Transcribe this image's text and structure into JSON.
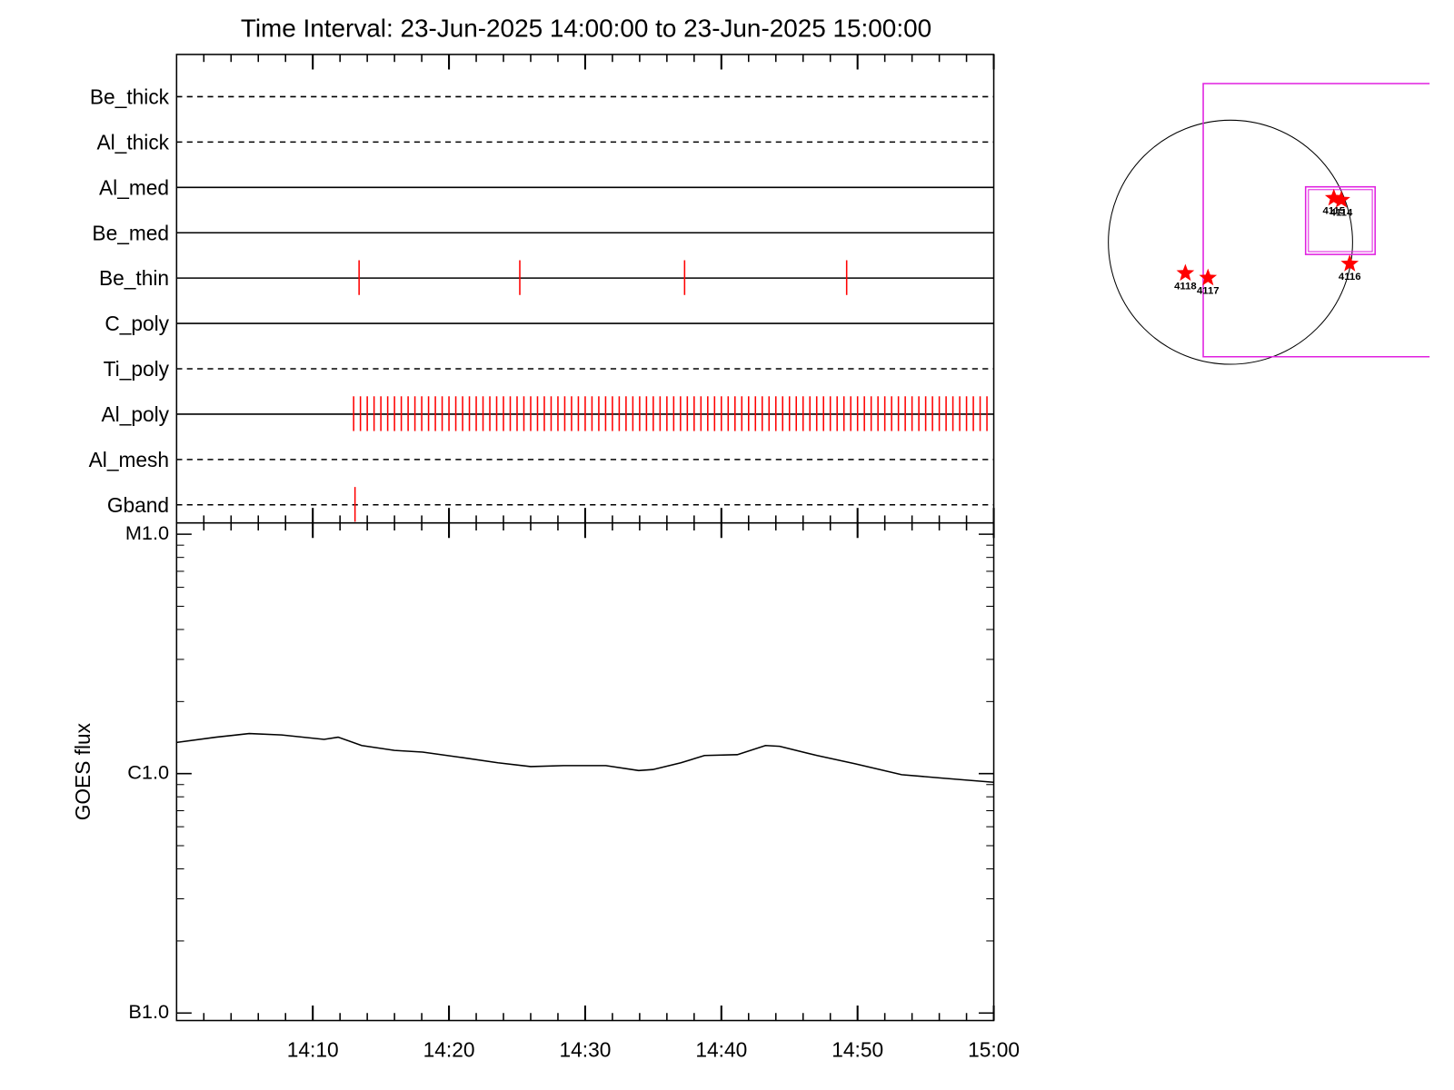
{
  "chart_data": {
    "type": "line",
    "title": "Time Interval: 23-Jun-2025 14:00:00 to 23-Jun-2025 15:00:00",
    "xlim": [
      0,
      60
    ],
    "xticks": [
      {
        "value": 10,
        "label": "14:10"
      },
      {
        "value": 20,
        "label": "14:20"
      },
      {
        "value": 30,
        "label": "14:30"
      },
      {
        "value": 40,
        "label": "14:40"
      },
      {
        "value": 50,
        "label": "14:50"
      },
      {
        "value": 60,
        "label": "15:00"
      }
    ],
    "xminorticks": [
      2,
      4,
      6,
      8,
      12,
      14,
      16,
      18,
      22,
      24,
      26,
      28,
      32,
      34,
      36,
      38,
      42,
      44,
      46,
      48,
      52,
      54,
      56,
      58
    ],
    "rows": [
      {
        "name": "Be_thick",
        "style": "dashed",
        "events": []
      },
      {
        "name": "Al_thick",
        "style": "dashed",
        "events": []
      },
      {
        "name": "Al_med",
        "style": "solid",
        "events": []
      },
      {
        "name": "Be_med",
        "style": "solid",
        "events": []
      },
      {
        "name": "Be_thin",
        "style": "solid",
        "events": [
          13.4,
          25.2,
          37.3,
          49.2
        ]
      },
      {
        "name": "C_poly",
        "style": "solid",
        "events": []
      },
      {
        "name": "Ti_poly",
        "style": "dashed",
        "events": []
      },
      {
        "name": "Al_poly",
        "style": "solid",
        "events": [
          13,
          13.5,
          14,
          14.5,
          15,
          15.5,
          16,
          16.5,
          17,
          17.5,
          18,
          18.5,
          19,
          19.5,
          20,
          20.5,
          21,
          21.5,
          22,
          22.5,
          23,
          23.5,
          24,
          24.5,
          25,
          25.5,
          26,
          26.5,
          27,
          27.5,
          28,
          28.5,
          29,
          29.5,
          30,
          30.5,
          31,
          31.5,
          32,
          32.5,
          33,
          33.5,
          34,
          34.5,
          35,
          35.5,
          36,
          36.5,
          37,
          37.5,
          38,
          38.5,
          39,
          39.5,
          40,
          40.5,
          41,
          41.5,
          42,
          42.5,
          43,
          43.5,
          44,
          44.5,
          45,
          45.5,
          46,
          46.5,
          47,
          47.5,
          48,
          48.5,
          49,
          49.5,
          50,
          50.5,
          51,
          51.5,
          52,
          52.5,
          53,
          53.5,
          54,
          54.5,
          55,
          55.5,
          56,
          56.5,
          57,
          57.5,
          58,
          58.5,
          59,
          59.5
        ]
      },
      {
        "name": "Al_mesh",
        "style": "dashed",
        "events": []
      },
      {
        "name": "Gband",
        "style": "dashed",
        "events": [
          13.1
        ]
      }
    ],
    "ylabel": "GOES flux",
    "log_y": true,
    "ylim": [
      1e-07,
      1e-05
    ],
    "yticks": [
      {
        "value": 1e-05,
        "label": "M1.0"
      },
      {
        "value": 1e-06,
        "label": "C1.0"
      },
      {
        "value": 1e-07,
        "label": "B1.0"
      }
    ],
    "yminorticks": [
      2e-07,
      3e-07,
      4e-07,
      5e-07,
      6e-07,
      7e-07,
      8e-07,
      9e-07,
      2e-06,
      3e-06,
      4e-06,
      5e-06,
      6e-06,
      7e-06,
      8e-06,
      9e-06
    ],
    "x": [
      0,
      2.9,
      5.33,
      7.72,
      10.83,
      11.86,
      13.59,
      16.0,
      18.07,
      20.83,
      23.59,
      26.0,
      28.41,
      31.52,
      33.93,
      34.97,
      37.03,
      38.76,
      41.17,
      43.24,
      44.28,
      47.03,
      49.79,
      53.24,
      56.0,
      60
    ],
    "series": [
      {
        "color": "#000000",
        "values": [
          1.35e-06,
          1.42e-06,
          1.47e-06,
          1.45e-06,
          1.39e-06,
          1.42e-06,
          1.31e-06,
          1.25e-06,
          1.23e-06,
          1.17e-06,
          1.11e-06,
          1.07e-06,
          1.08e-06,
          1.08e-06,
          1.03e-06,
          1.04e-06,
          1.11e-06,
          1.19e-06,
          1.2e-06,
          1.31e-06,
          1.3e-06,
          1.19e-06,
          1.1e-06,
          9.9e-07,
          9.6e-07,
          9.2e-07
        ]
      }
    ],
    "event_color": "#ff0000",
    "regions": [
      {
        "label": "4115",
        "x": 800,
        "y": 342
      },
      {
        "label": "4114",
        "x": 858,
        "y": 327
      },
      {
        "label": "4116",
        "x": 923,
        "y": -167
      },
      {
        "label": "4118",
        "x": -349,
        "y": -240
      },
      {
        "label": "4117",
        "x": -174,
        "y": -276
      }
    ]
  }
}
